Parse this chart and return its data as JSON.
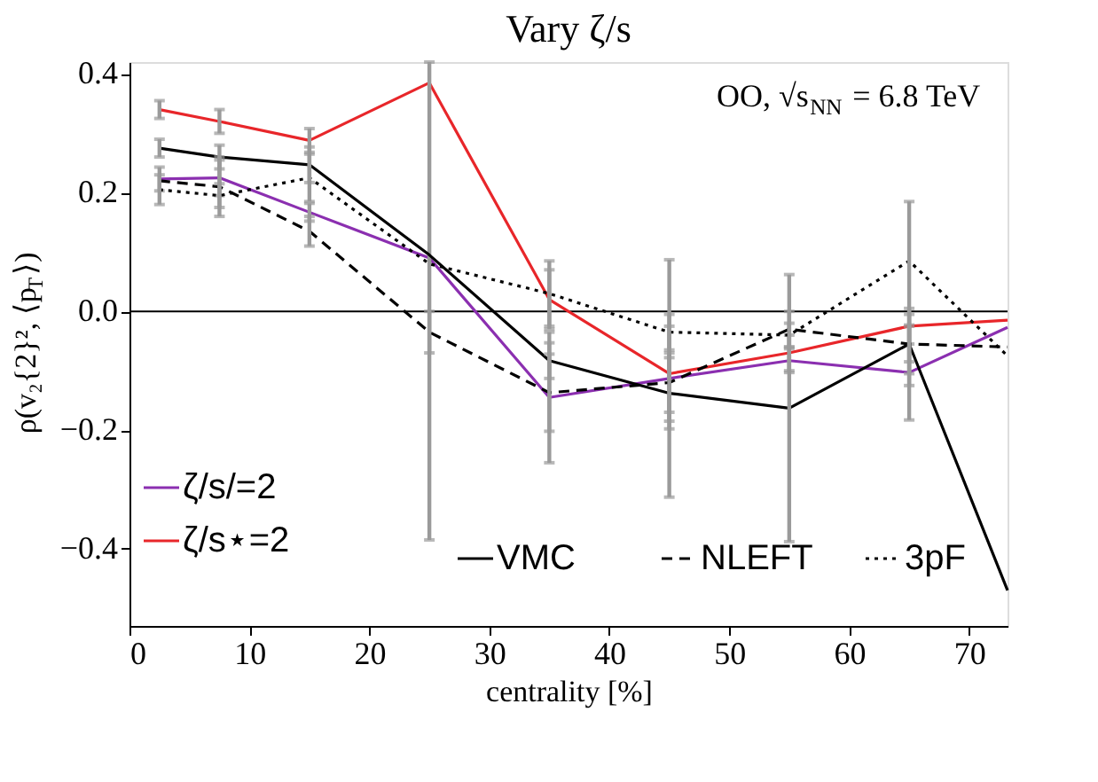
{
  "chart_data": {
    "type": "line",
    "title": "Vary ζ/s",
    "xlabel": "centrality [%]",
    "ylabel": "ρ(v₂{2}², ⟨p$_{T}$⟩)",
    "annotations": [
      "OO, √s$_{NN}$ = 6.8 TeV"
    ],
    "xlim": [
      0,
      73.2
    ],
    "ylim": [
      -0.53,
      0.42
    ],
    "xticks": [
      0,
      10,
      20,
      30,
      40,
      50,
      60,
      70
    ],
    "yticks": [
      {
        "value": -0.4,
        "label": "−0.4"
      },
      {
        "value": -0.2,
        "label": "−0.2"
      },
      {
        "value": 0,
        "label": "0.0"
      },
      {
        "value": 0.2,
        "label": "0.2"
      },
      {
        "value": 0.4,
        "label": "0.4"
      }
    ],
    "ref_lines": [
      {
        "axis": "y",
        "value": 0,
        "color": "#000000"
      }
    ],
    "grid": false,
    "legend": "bottom left",
    "marker": "none",
    "series": [
      {
        "name": "ζ/s/=2",
        "color": "#8b2fb0",
        "line_style": "solid",
        "x": [
          2.5,
          7.5,
          15,
          25,
          35,
          45,
          55,
          65,
          73.2
        ],
        "values": [
          0.223,
          0.225,
          0.167,
          0.09,
          -0.145,
          -0.113,
          -0.083,
          -0.103,
          -0.027
        ],
        "errors": [
          0.02,
          0.03,
          0.015,
          null,
          0.11,
          0.2,
          0.02,
          0.08,
          null
        ]
      },
      {
        "name": "ζ/s⋆=2",
        "color": "#e8262a",
        "line_style": "solid",
        "x": [
          2.5,
          7.5,
          15,
          25,
          35,
          45,
          55,
          65,
          73.2
        ],
        "values": [
          0.34,
          0.32,
          0.288,
          0.385,
          0.02,
          -0.105,
          -0.07,
          -0.025,
          -0.015
        ],
        "errors": [
          0.015,
          0.02,
          0.02,
          [
            -0.385,
            0.42
          ],
          0.05,
          0.08,
          0.03,
          0.03,
          null
        ]
      },
      {
        "name": "VMC",
        "color": "#000000",
        "line_style": "solid",
        "x": [
          2.5,
          7.5,
          15,
          25,
          35,
          45,
          55,
          65,
          73.2
        ],
        "values": [
          0.275,
          0.26,
          0.247,
          0.095,
          -0.083,
          -0.138,
          -0.163,
          -0.055,
          -0.47
        ],
        "errors": [
          0.015,
          0.02,
          0.03,
          null,
          0.03,
          0.06,
          0.225,
          0.05,
          null
        ]
      },
      {
        "name": "NLEFT",
        "color": "#000000",
        "line_style": "dashed",
        "x": [
          2.5,
          7.5,
          15,
          25,
          35,
          45,
          55,
          65,
          73.2
        ],
        "values": [
          0.22,
          0.21,
          0.135,
          -0.035,
          -0.137,
          -0.12,
          -0.03,
          -0.055,
          -0.06
        ],
        "errors": [
          null,
          0.05,
          0.025,
          0.035,
          0.065,
          0.05,
          0.03,
          0.03,
          null
        ]
      },
      {
        "name": "3pF",
        "color": "#000000",
        "line_style": "dotted",
        "x": [
          2.5,
          7.5,
          15,
          25,
          35,
          45,
          55,
          65,
          73.2
        ],
        "values": [
          0.205,
          0.195,
          0.225,
          0.08,
          0.03,
          -0.035,
          -0.04,
          0.085,
          -0.075
        ],
        "errors": [
          0.025,
          0.02,
          0.04,
          null,
          0.055,
          0.03,
          0.02,
          [
            -0.125,
            0.185
          ],
          null
        ]
      }
    ]
  }
}
